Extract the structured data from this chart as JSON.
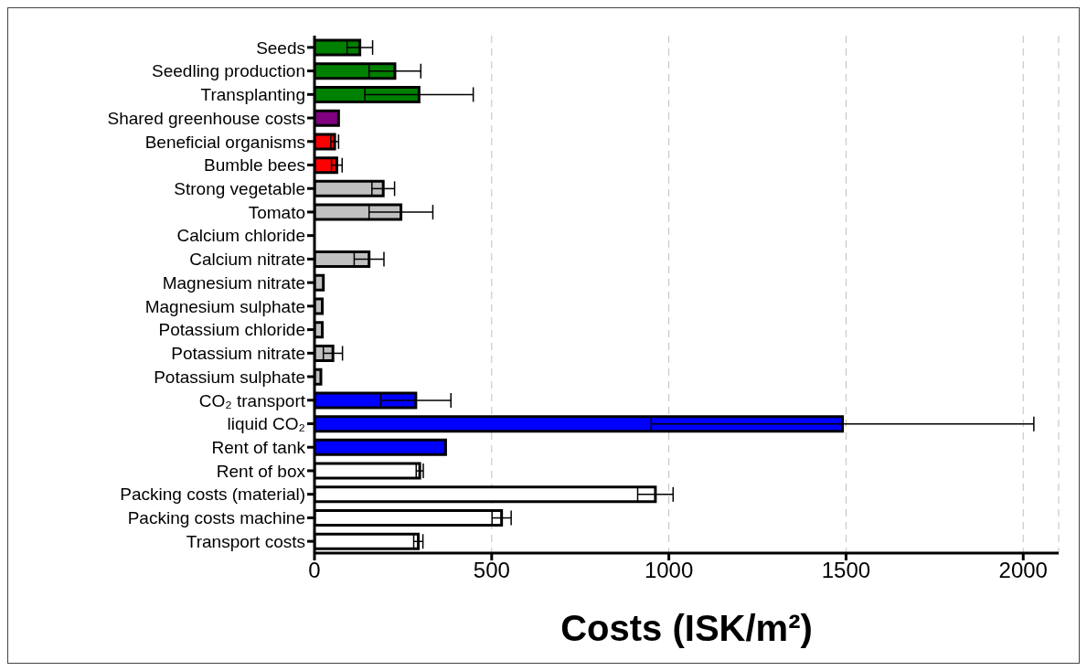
{
  "chart_data": {
    "type": "bar",
    "orientation": "horizontal",
    "xlabel": "Costs (ISK/m²)",
    "categories": [
      "Seeds",
      "Seedling production",
      "Transplanting",
      "Shared greenhouse costs",
      "Beneficial organisms",
      "Bumble bees",
      "Strong vegetable",
      "Tomato",
      "Calcium chloride",
      "Calcium nitrate",
      "Magnesium nitrate",
      "Magnesium sulphate",
      "Potassium chloride",
      "Potassium nitrate",
      "Potassium sulphate",
      "CO₂ transport",
      "liquid CO₂",
      "Rent of tank",
      "Rent of box",
      "Packing costs (material)",
      "Packing costs machine",
      "Transport costs"
    ],
    "values": [
      128,
      227,
      295,
      68,
      57,
      63,
      194,
      244,
      0,
      154,
      25,
      22,
      22,
      52,
      18,
      286,
      1490,
      370,
      297,
      962,
      528,
      293
    ],
    "errors": [
      36,
      73,
      153,
      null,
      11,
      15,
      32,
      90,
      null,
      42,
      null,
      null,
      null,
      27,
      null,
      99,
      540,
      null,
      10,
      50,
      27,
      13
    ],
    "colors": [
      "#008000",
      "#008000",
      "#008000",
      "#800080",
      "#ff0000",
      "#ff0000",
      "#c0c0c0",
      "#c0c0c0",
      "#c0c0c0",
      "#c0c0c0",
      "#c0c0c0",
      "#c0c0c0",
      "#c0c0c0",
      "#c0c0c0",
      "#c0c0c0",
      "#0000ff",
      "#0000ff",
      "#0000ff",
      "#ffffff",
      "#ffffff",
      "#ffffff",
      "#ffffff"
    ],
    "xlim": [
      0,
      2100
    ],
    "xticks": [
      0,
      500,
      1000,
      1500,
      2000
    ],
    "grid": "x"
  }
}
